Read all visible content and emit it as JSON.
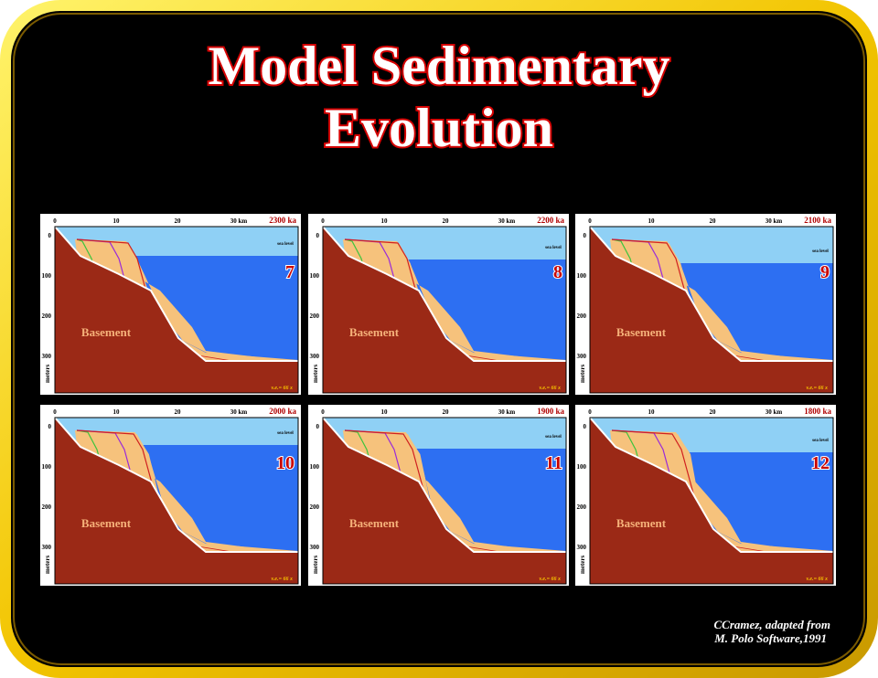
{
  "title": {
    "line1": "Model Sedimentary",
    "line2": "Evolution"
  },
  "panel_common": {
    "x_ticks": [
      "0",
      "10",
      "20",
      "30 km"
    ],
    "y_ticks": [
      "0",
      "100",
      "200",
      "300"
    ],
    "y_axis_label": "meters",
    "sea_level_label": "sea level",
    "basement_label": "Basement",
    "vertical_exaggeration": "v.e.= 66 x"
  },
  "panels": [
    {
      "age": "2300 ka",
      "number": "7"
    },
    {
      "age": "2200 ka",
      "number": "8"
    },
    {
      "age": "2100 ka",
      "number": "9"
    },
    {
      "age": "2000 ka",
      "number": "10"
    },
    {
      "age": "1900 ka",
      "number": "11"
    },
    {
      "age": "1800 ka",
      "number": "12"
    }
  ],
  "credit": {
    "line1": "CCramez, adapted  from",
    "line2": "M. Polo Software,1991"
  }
}
